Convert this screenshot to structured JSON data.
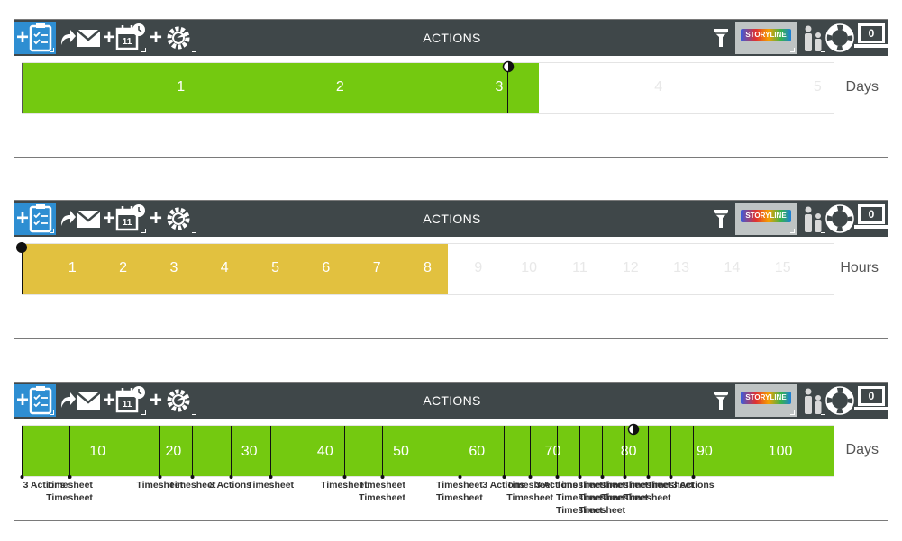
{
  "colors": {
    "toolbar_bg": "#3f4749",
    "add_action_bg": "#2e8ed2",
    "green_fill": "#74c910",
    "yellow_fill": "#e2c13f",
    "faded_label": "#e8e8e8",
    "bright_label": "#ffffff"
  },
  "toolbar": {
    "title": "ACTIONS",
    "counter": "0",
    "calendar_day": "11",
    "storyline_label": "STORYLINE",
    "icons": [
      "add-action-icon",
      "reply-icon",
      "email-icon",
      "add-calendar-icon",
      "add-settings-icon",
      "filter-icon",
      "storyline-icon",
      "people-icon",
      "help-lifebuoy-icon",
      "laptop-notification-icon"
    ]
  },
  "panels": [
    {
      "unit": "Days",
      "fill_color": "green",
      "fill_end": 3.25,
      "ticks": [
        {
          "value": 1,
          "label": "1"
        },
        {
          "value": 2,
          "label": "2"
        },
        {
          "value": 3,
          "label": "3"
        },
        {
          "value": 4,
          "label": "4"
        },
        {
          "value": 5,
          "label": "5"
        }
      ],
      "domain": [
        0,
        5.1
      ],
      "marker": {
        "value": 3.05,
        "type": "half-moon"
      }
    },
    {
      "unit": "Hours",
      "fill_color": "yellow",
      "fill_end": 8.4,
      "ticks": [
        {
          "value": 1,
          "label": "1"
        },
        {
          "value": 2,
          "label": "2"
        },
        {
          "value": 3,
          "label": "3"
        },
        {
          "value": 4,
          "label": "4"
        },
        {
          "value": 5,
          "label": "5"
        },
        {
          "value": 6,
          "label": "6"
        },
        {
          "value": 7,
          "label": "7"
        },
        {
          "value": 8,
          "label": "8"
        },
        {
          "value": 9,
          "label": "9"
        },
        {
          "value": 10,
          "label": "10"
        },
        {
          "value": 11,
          "label": "11"
        },
        {
          "value": 12,
          "label": "12"
        },
        {
          "value": 13,
          "label": "13"
        },
        {
          "value": 14,
          "label": "14"
        },
        {
          "value": 15,
          "label": "15"
        }
      ],
      "domain": [
        0,
        16
      ],
      "marker": {
        "value": 0,
        "type": "dot"
      }
    },
    {
      "unit": "Days",
      "fill_color": "green",
      "fill_end": 107,
      "ticks": [
        {
          "value": 10,
          "label": "10"
        },
        {
          "value": 20,
          "label": "20"
        },
        {
          "value": 30,
          "label": "30"
        },
        {
          "value": 40,
          "label": "40"
        },
        {
          "value": 50,
          "label": "50"
        },
        {
          "value": 60,
          "label": "60"
        },
        {
          "value": 70,
          "label": "70"
        },
        {
          "value": 80,
          "label": "80"
        },
        {
          "value": 90,
          "label": "90"
        },
        {
          "value": 100,
          "label": "100"
        }
      ],
      "domain": [
        0,
        107
      ],
      "marker": {
        "value": 80.5,
        "type": "half-moon"
      },
      "events": [
        {
          "value": 0,
          "labels": [
            "3 Actions"
          ]
        },
        {
          "value": 6.3,
          "labels": [
            "Timesheet",
            "Timesheet"
          ]
        },
        {
          "value": 18.2,
          "labels": [
            "Timesheet"
          ]
        },
        {
          "value": 22.5,
          "labels": [
            "Timesheet"
          ]
        },
        {
          "value": 27.5,
          "labels": [
            "3 Actions"
          ]
        },
        {
          "value": 32.8,
          "labels": [
            "Timesheet"
          ]
        },
        {
          "value": 42.5,
          "labels": [
            "Timesheet"
          ]
        },
        {
          "value": 47.5,
          "labels": [
            "Timesheet",
            "Timesheet"
          ]
        },
        {
          "value": 57.7,
          "labels": [
            "Timesheet",
            "Timesheet"
          ]
        },
        {
          "value": 63.5,
          "labels": [
            "3 Actions"
          ]
        },
        {
          "value": 67,
          "labels": [
            "Timesheet",
            "Timesheet"
          ]
        },
        {
          "value": 70.5,
          "labels": [
            "3 Actions"
          ]
        },
        {
          "value": 73.5,
          "labels": [
            "Timesheet",
            "Timesheet",
            "Timesheet"
          ]
        },
        {
          "value": 76.5,
          "labels": [
            "Timesheet",
            "Timesheet",
            "Timesheet"
          ]
        },
        {
          "value": 79.5,
          "labels": [
            "Timesheet",
            "Timesheet"
          ]
        },
        {
          "value": 82.5,
          "labels": [
            "Timesheet",
            "Timesheet"
          ]
        },
        {
          "value": 85.5,
          "labels": [
            "Timesheet"
          ]
        },
        {
          "value": 88.5,
          "labels": [
            "3 Actions"
          ]
        }
      ]
    }
  ]
}
